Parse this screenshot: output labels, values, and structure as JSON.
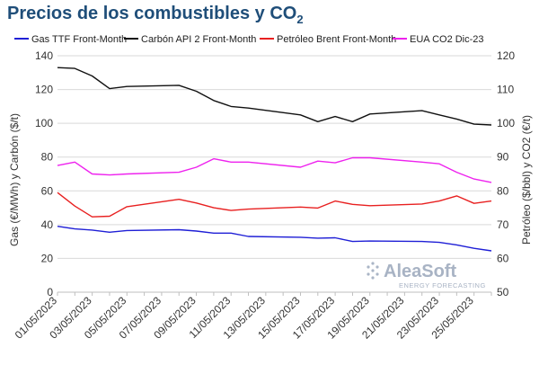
{
  "chart_data": {
    "type": "line",
    "title_main": "Precios de los combustibles y CO",
    "title_sub": "2",
    "ylabel_left": "Gas (€/MWh) y Carbón ($/t)",
    "ylabel_right": "Petróleo ($/bbl) y CO2 (€/t)",
    "ylim_left": [
      0,
      140
    ],
    "ylim_right": [
      50,
      120
    ],
    "yticks_left": [
      0,
      20,
      40,
      60,
      80,
      100,
      120,
      140
    ],
    "yticks_right": [
      50,
      60,
      70,
      80,
      90,
      100,
      110,
      120
    ],
    "grid": true,
    "legend_position": "top",
    "x": [
      "01/05/2023",
      "02/05/2023",
      "03/05/2023",
      "04/05/2023",
      "05/05/2023",
      "06/05/2023",
      "07/05/2023",
      "08/05/2023",
      "09/05/2023",
      "10/05/2023",
      "11/05/2023",
      "12/05/2023",
      "13/05/2023",
      "14/05/2023",
      "15/05/2023",
      "16/05/2023",
      "17/05/2023",
      "18/05/2023",
      "19/05/2023",
      "20/05/2023",
      "21/05/2023",
      "22/05/2023",
      "23/05/2023",
      "24/05/2023",
      "25/05/2023",
      "26/05/2023"
    ],
    "x_tick_labels": [
      "01/05/2023",
      "03/05/2023",
      "05/05/2023",
      "07/05/2023",
      "09/05/2023",
      "11/05/2023",
      "13/05/2023",
      "15/05/2023",
      "17/05/2023",
      "19/05/2023",
      "21/05/2023",
      "23/05/2023",
      "25/05/2023"
    ],
    "series": [
      {
        "name": "Gas TTF Front-Month",
        "axis": "left",
        "color": "#1f1fd6",
        "x": [
          "01/05/2023",
          "02/05/2023",
          "03/05/2023",
          "04/05/2023",
          "05/05/2023",
          "08/05/2023",
          "09/05/2023",
          "10/05/2023",
          "11/05/2023",
          "12/05/2023",
          "15/05/2023",
          "16/05/2023",
          "17/05/2023",
          "18/05/2023",
          "19/05/2023",
          "22/05/2023",
          "23/05/2023",
          "24/05/2023",
          "25/05/2023",
          "26/05/2023"
        ],
        "values": [
          39,
          37.5,
          36.8,
          35.5,
          36.5,
          37,
          36.2,
          35,
          35,
          33,
          32.5,
          32,
          32.2,
          30,
          30.3,
          30,
          29.5,
          28,
          26,
          24.5
        ]
      },
      {
        "name": "Carbón API 2 Front-Month",
        "axis": "left",
        "color": "#111111",
        "x": [
          "01/05/2023",
          "02/05/2023",
          "03/05/2023",
          "04/05/2023",
          "05/05/2023",
          "08/05/2023",
          "09/05/2023",
          "10/05/2023",
          "11/05/2023",
          "12/05/2023",
          "15/05/2023",
          "16/05/2023",
          "17/05/2023",
          "18/05/2023",
          "19/05/2023",
          "22/05/2023",
          "23/05/2023",
          "24/05/2023",
          "25/05/2023",
          "26/05/2023"
        ],
        "values": [
          133,
          132.5,
          128,
          120.5,
          121.8,
          122.5,
          119,
          113.5,
          110,
          109,
          105,
          101,
          104,
          101,
          105.5,
          107.5,
          105,
          102.5,
          99.5,
          99
        ]
      },
      {
        "name": "Petróleo Brent Front-Month",
        "axis": "right",
        "color": "#e82020",
        "x": [
          "01/05/2023",
          "02/05/2023",
          "03/05/2023",
          "04/05/2023",
          "05/05/2023",
          "08/05/2023",
          "09/05/2023",
          "10/05/2023",
          "11/05/2023",
          "12/05/2023",
          "15/05/2023",
          "16/05/2023",
          "17/05/2023",
          "18/05/2023",
          "19/05/2023",
          "22/05/2023",
          "23/05/2023",
          "24/05/2023",
          "25/05/2023",
          "26/05/2023"
        ],
        "values": [
          79.5,
          75.5,
          72.3,
          72.5,
          75.3,
          77.5,
          76.4,
          75,
          74.2,
          74.6,
          75.2,
          74.9,
          77,
          76,
          75.6,
          76.1,
          77,
          78.5,
          76.3,
          77
        ]
      },
      {
        "name": "EUA CO2 Dic-23",
        "axis": "right",
        "color": "#ee22ee",
        "x": [
          "01/05/2023",
          "02/05/2023",
          "03/05/2023",
          "04/05/2023",
          "05/05/2023",
          "08/05/2023",
          "09/05/2023",
          "10/05/2023",
          "11/05/2023",
          "12/05/2023",
          "15/05/2023",
          "16/05/2023",
          "17/05/2023",
          "18/05/2023",
          "19/05/2023",
          "22/05/2023",
          "23/05/2023",
          "24/05/2023",
          "25/05/2023",
          "26/05/2023"
        ],
        "values": [
          87.5,
          88.5,
          85,
          84.7,
          85,
          85.5,
          87,
          89.5,
          88.5,
          88.5,
          87,
          88.8,
          88.3,
          89.8,
          89.8,
          88.5,
          88,
          85.5,
          83.5,
          82.5
        ]
      }
    ]
  },
  "watermark": {
    "brand": "AleaSoft",
    "tagline": "ENERGY FORECASTING"
  }
}
